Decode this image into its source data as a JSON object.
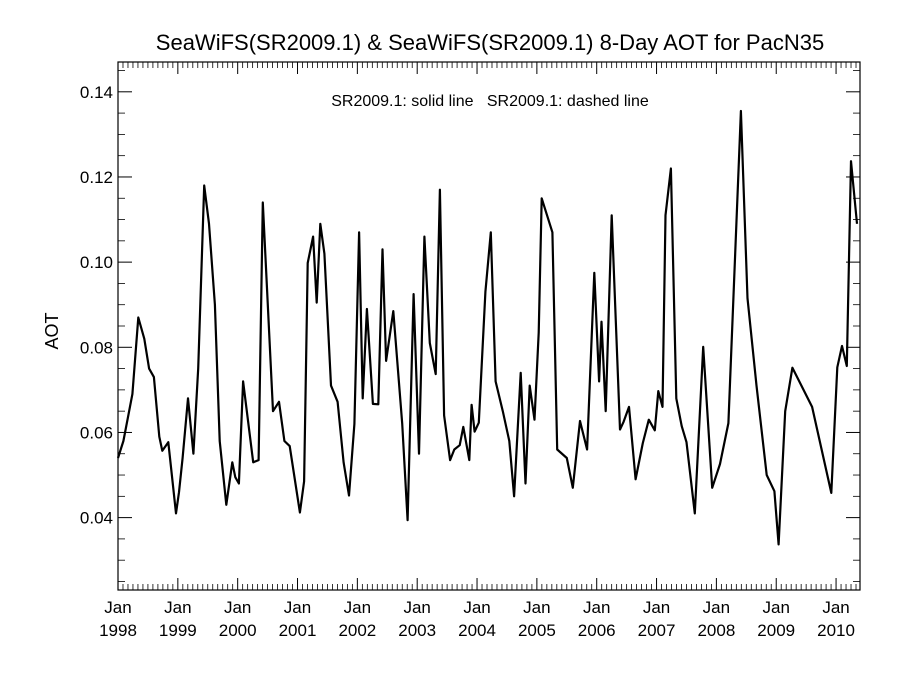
{
  "chart_data": {
    "type": "line",
    "title": "SeaWiFS(SR2009.1) & SeaWiFS(SR2009.1) 8-Day AOT for PacN35",
    "annotation": "SR2009.1: solid line   SR2009.1: dashed line",
    "xlabel": "",
    "ylabel": "AOT",
    "xlim": [
      1998.0,
      2010.4
    ],
    "ylim": [
      0.023,
      0.147
    ],
    "grid": false,
    "legend": "none",
    "line_color": "#000000",
    "x_ticks": [
      {
        "value": 1998,
        "label": [
          "Jan",
          "1998"
        ]
      },
      {
        "value": 1999,
        "label": [
          "Jan",
          "1999"
        ]
      },
      {
        "value": 2000,
        "label": [
          "Jan",
          "2000"
        ]
      },
      {
        "value": 2001,
        "label": [
          "Jan",
          "2001"
        ]
      },
      {
        "value": 2002,
        "label": [
          "Jan",
          "2002"
        ]
      },
      {
        "value": 2003,
        "label": [
          "Jan",
          "2003"
        ]
      },
      {
        "value": 2004,
        "label": [
          "Jan",
          "2004"
        ]
      },
      {
        "value": 2005,
        "label": [
          "Jan",
          "2005"
        ]
      },
      {
        "value": 2006,
        "label": [
          "Jan",
          "2006"
        ]
      },
      {
        "value": 2007,
        "label": [
          "Jan",
          "2007"
        ]
      },
      {
        "value": 2008,
        "label": [
          "Jan",
          "2008"
        ]
      },
      {
        "value": 2009,
        "label": [
          "Jan",
          "2009"
        ]
      },
      {
        "value": 2010,
        "label": [
          "Jan",
          "2010"
        ]
      }
    ],
    "y_ticks": [
      {
        "value": 0.04,
        "label": "0.04"
      },
      {
        "value": 0.06,
        "label": "0.06"
      },
      {
        "value": 0.08,
        "label": "0.08"
      },
      {
        "value": 0.1,
        "label": "0.10"
      },
      {
        "value": 0.12,
        "label": "0.12"
      },
      {
        "value": 0.14,
        "label": "0.14"
      }
    ],
    "series": [
      {
        "style": "solid",
        "x": [
          1998.0,
          1998.09,
          1998.24,
          1998.34,
          1998.44,
          1998.52,
          1998.6,
          1998.69,
          1998.74,
          1998.84,
          1998.97,
          1999.02,
          1999.08,
          1999.17,
          1999.26,
          1999.34,
          1999.44,
          1999.52,
          1999.62,
          1999.7,
          1999.81,
          1999.91,
          1999.96,
          2000.02,
          2000.09,
          2000.26,
          2000.35,
          2000.42,
          2000.59,
          2000.69,
          2000.78,
          2000.87,
          2001.04,
          2001.11,
          2001.17,
          2001.26,
          2001.32,
          2001.38,
          2001.45,
          2001.56,
          2001.67,
          2001.77,
          2001.86,
          2001.95,
          2002.03,
          2002.09,
          2002.16,
          2002.26,
          2002.35,
          2002.42,
          2002.48,
          2002.6,
          2002.75,
          2002.84,
          2002.94,
          2003.03,
          2003.12,
          2003.21,
          2003.31,
          2003.38,
          2003.45,
          2003.55,
          2003.62,
          2003.71,
          2003.77,
          2003.87,
          2003.91,
          2003.96,
          2004.03,
          2004.14,
          2004.23,
          2004.31,
          2004.43,
          2004.54,
          2004.62,
          2004.73,
          2004.81,
          2004.88,
          2004.96,
          2005.03,
          2005.08,
          2005.26,
          2005.34,
          2005.5,
          2005.6,
          2005.72,
          2005.84,
          2005.96,
          2006.04,
          2006.08,
          2006.15,
          2006.25,
          2006.39,
          2006.45,
          2006.54,
          2006.65,
          2006.77,
          2006.87,
          2006.97,
          2007.03,
          2007.1,
          2007.15,
          2007.24,
          2007.33,
          2007.42,
          2007.5,
          2007.64,
          2007.78,
          2007.93,
          2008.06,
          2008.2,
          2008.41,
          2008.52,
          2008.67,
          2008.84,
          2008.97,
          2009.04,
          2009.15,
          2009.27,
          2009.6,
          2009.92,
          2010.02,
          2010.1,
          2010.18,
          2010.25,
          2010.35
        ],
        "y": [
          0.054,
          0.058,
          0.069,
          0.087,
          0.082,
          0.075,
          0.073,
          0.059,
          0.0557,
          0.0577,
          0.041,
          0.046,
          0.054,
          0.068,
          0.055,
          0.075,
          0.118,
          0.109,
          0.09,
          0.058,
          0.043,
          0.053,
          0.0495,
          0.048,
          0.072,
          0.053,
          0.0535,
          0.114,
          0.065,
          0.0672,
          0.058,
          0.0568,
          0.0412,
          0.0485,
          0.0998,
          0.106,
          0.0905,
          0.109,
          0.102,
          0.071,
          0.0672,
          0.053,
          0.0452,
          0.062,
          0.107,
          0.068,
          0.089,
          0.0667,
          0.0666,
          0.103,
          0.0768,
          0.0885,
          0.0621,
          0.0394,
          0.0925,
          0.055,
          0.106,
          0.081,
          0.0737,
          0.117,
          0.064,
          0.0535,
          0.056,
          0.057,
          0.0613,
          0.0535,
          0.0665,
          0.0602,
          0.0623,
          0.093,
          0.107,
          0.072,
          0.065,
          0.058,
          0.045,
          0.074,
          0.048,
          0.071,
          0.063,
          0.0834,
          0.115,
          0.107,
          0.056,
          0.054,
          0.047,
          0.0627,
          0.056,
          0.0975,
          0.072,
          0.086,
          0.065,
          0.111,
          0.0607,
          0.0625,
          0.066,
          0.049,
          0.0575,
          0.063,
          0.0605,
          0.0697,
          0.066,
          0.111,
          0.122,
          0.068,
          0.0615,
          0.0577,
          0.041,
          0.0801,
          0.047,
          0.0526,
          0.0622,
          0.1355,
          0.0915,
          0.071,
          0.05,
          0.0462,
          0.0337,
          0.065,
          0.0752,
          0.066,
          0.0458,
          0.0753,
          0.0803,
          0.0756,
          0.1237,
          0.109
        ]
      }
    ]
  }
}
